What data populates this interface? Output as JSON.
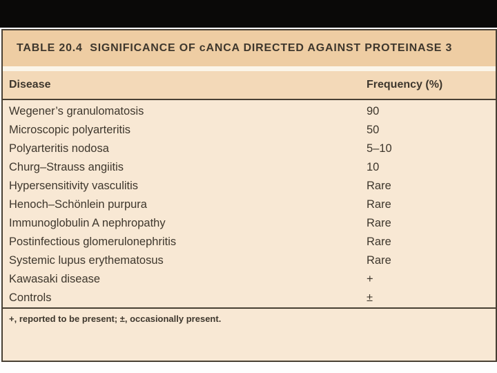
{
  "palette": {
    "page": "#fefefe",
    "bar": "#0a0908",
    "border": "#473f33",
    "titleband": "#eecda3",
    "gapband": "#fbf5e9",
    "headerband": "#f3d9b8",
    "bodyband": "#f8e8d4",
    "text": "#3e372d"
  },
  "table": {
    "title": "TABLE 20.4  SIGNIFICANCE OF cANCA DIRECTED AGAINST PROTEINASE 3",
    "columns": [
      "Disease",
      "Frequency (%)"
    ],
    "rows": [
      {
        "disease": "Wegener’s granulomatosis",
        "frequency": "90"
      },
      {
        "disease": "Microscopic polyarteritis",
        "frequency": "50"
      },
      {
        "disease": "Polyarteritis nodosa",
        "frequency": "5–10"
      },
      {
        "disease": "Churg–Strauss angiitis",
        "frequency": "10"
      },
      {
        "disease": "Hypersensitivity vasculitis",
        "frequency": "Rare"
      },
      {
        "disease": "Henoch–Schönlein purpura",
        "frequency": "Rare"
      },
      {
        "disease": "Immunoglobulin A nephropathy",
        "frequency": "Rare"
      },
      {
        "disease": "Postinfectious glomerulonephritis",
        "frequency": "Rare"
      },
      {
        "disease": "Systemic lupus erythematosus",
        "frequency": "Rare"
      },
      {
        "disease": "Kawasaki disease",
        "frequency": "+"
      },
      {
        "disease": "Controls",
        "frequency": "±"
      }
    ],
    "footnote": "+, reported to be present; ±, occasionally present."
  },
  "chart_data": {
    "type": "table",
    "title": "TABLE 20.4 SIGNIFICANCE OF cANCA DIRECTED AGAINST PROTEINASE 3",
    "columns": [
      "Disease",
      "Frequency (%)"
    ],
    "rows": [
      [
        "Wegener’s granulomatosis",
        "90"
      ],
      [
        "Microscopic polyarteritis",
        "50"
      ],
      [
        "Polyarteritis nodosa",
        "5–10"
      ],
      [
        "Churg–Strauss angiitis",
        "10"
      ],
      [
        "Hypersensitivity vasculitis",
        "Rare"
      ],
      [
        "Henoch–Schönlein purpura",
        "Rare"
      ],
      [
        "Immunoglobulin A nephropathy",
        "Rare"
      ],
      [
        "Postinfectious glomerulonephritis",
        "Rare"
      ],
      [
        "Systemic lupus erythematosus",
        "Rare"
      ],
      [
        "Kawasaki disease",
        "+"
      ],
      [
        "Controls",
        "±"
      ]
    ],
    "footnote": "+, reported to be present; ±, occasionally present."
  }
}
